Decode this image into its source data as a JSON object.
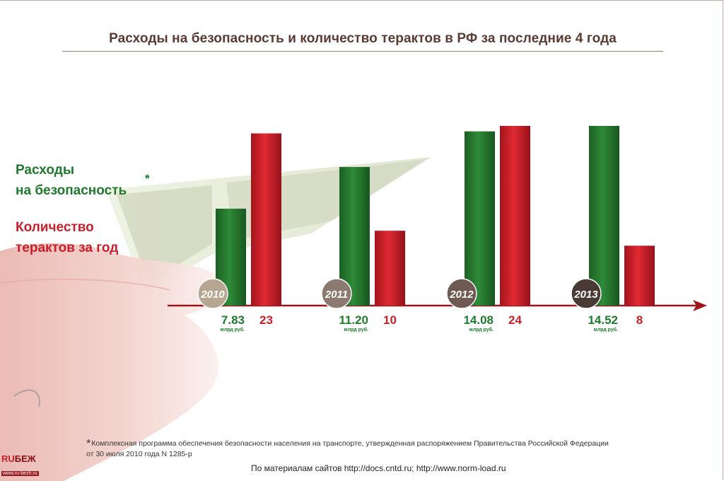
{
  "title": "Расходы на безопасность и количество терактов в РФ за последние 4 года",
  "legend": {
    "spending_line1": "Расходы",
    "spending_line2": "на безопасность",
    "spending_star": "*",
    "attacks_line1": "Количество",
    "attacks_line2": "терактов за год"
  },
  "footnote": {
    "star": "*",
    "line1": "Комплексная программа обеспечения безопасности населения на транспорте, утвержденная распоряжением Правительства Российской Федерации",
    "line2": "от 30 июля 2010 года N 1285-р"
  },
  "sources": "По материалам сайтов http://docs.cntd.ru; http://www.norm-load.ru",
  "logo": {
    "ru": "RU",
    "bezh": "БЕЖ",
    "url": "www.ru-bezh.ru"
  },
  "colors": {
    "green": "#1f7a2e",
    "red": "#c8202a",
    "axis": "#a0151c",
    "year_badge": [
      "#b7a792",
      "#8c7a70",
      "#6e5a52",
      "#4a3a34"
    ]
  },
  "chart_data": {
    "type": "bar",
    "categories": [
      "2010",
      "2011",
      "2012",
      "2013"
    ],
    "series": [
      {
        "name": "Расходы на безопасность",
        "values": [
          7.83,
          11.2,
          14.08,
          14.52
        ],
        "labels": [
          "7.83",
          "11.20",
          "14.08",
          "14.52"
        ],
        "unit": "млрд руб."
      },
      {
        "name": "Количество терактов за год",
        "values": [
          23,
          10,
          24,
          8
        ],
        "labels": [
          "23",
          "10",
          "24",
          "8"
        ]
      }
    ]
  }
}
